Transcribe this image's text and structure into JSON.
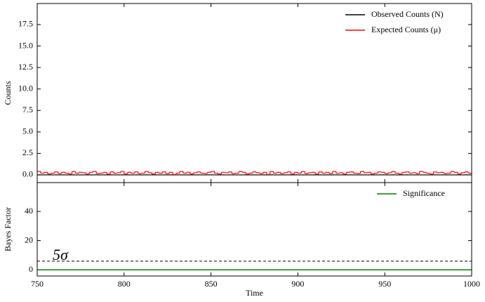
{
  "chart_data": [
    {
      "type": "step",
      "ylabel": "Counts",
      "xlim": [
        750,
        1000
      ],
      "ylim": [
        -0.9,
        19.95
      ],
      "yticks": [
        {
          "value": 0,
          "label": "0.0"
        },
        {
          "value": 2.5,
          "label": "2.5"
        },
        {
          "value": 5,
          "label": "5.0"
        },
        {
          "value": 7.5,
          "label": "7.5"
        },
        {
          "value": 10,
          "label": "10.0"
        },
        {
          "value": 12.5,
          "label": "12.5"
        },
        {
          "value": 15,
          "label": "15.0"
        },
        {
          "value": 17.5,
          "label": "17.5"
        }
      ],
      "legend": "upper right",
      "x": [
        750,
        752,
        754,
        756,
        758,
        760,
        762,
        764,
        766,
        768,
        770,
        772,
        774,
        776,
        778,
        780,
        782,
        784,
        786,
        788,
        790,
        792,
        794,
        796,
        798,
        800,
        802,
        804,
        806,
        808,
        810,
        812,
        814,
        816,
        818,
        820,
        822,
        824,
        826,
        828,
        830,
        832,
        834,
        836,
        838,
        840,
        842,
        844,
        846,
        848,
        850,
        852,
        854,
        856,
        858,
        860,
        862,
        864,
        866,
        868,
        870,
        872,
        874,
        876,
        878,
        880,
        882,
        884,
        886,
        888,
        890,
        892,
        894,
        896,
        898,
        900,
        902,
        904,
        906,
        908,
        910,
        912,
        914,
        916,
        918,
        920,
        922,
        924,
        926,
        928,
        930,
        932,
        934,
        936,
        938,
        940,
        942,
        944,
        946,
        948,
        950,
        952,
        954,
        956,
        958,
        960,
        962,
        964,
        966,
        968,
        970,
        972,
        974,
        976,
        978,
        980,
        982,
        984,
        986,
        988,
        990,
        992,
        994,
        996,
        998,
        1000
      ],
      "series": [
        {
          "name": "Observed Counts (N)",
          "color": "#000000",
          "values": [
            0,
            0,
            0,
            0,
            0,
            0,
            0,
            0,
            0,
            0,
            0,
            0,
            0,
            0,
            0,
            0,
            0,
            0,
            0,
            0,
            0,
            0,
            0,
            0,
            0,
            0,
            0,
            0,
            0,
            0,
            0,
            0,
            0,
            0,
            0,
            0,
            0,
            0,
            0,
            0,
            0,
            0,
            0,
            0,
            0,
            0,
            0,
            0,
            0,
            0,
            0,
            0,
            0,
            0,
            0,
            0,
            0,
            0,
            0,
            0,
            0,
            0,
            0,
            0,
            0,
            0,
            0,
            0,
            0,
            0,
            0,
            0,
            0,
            0,
            0,
            0,
            0,
            0,
            0,
            0,
            0,
            0,
            0,
            0,
            0,
            0,
            0,
            0,
            0,
            0,
            0,
            0,
            0,
            0,
            0,
            0,
            0,
            0,
            0,
            0,
            0,
            0,
            0,
            0,
            0,
            0,
            0,
            0,
            0,
            0,
            0,
            0,
            0,
            0,
            0,
            0,
            0,
            0,
            0,
            0,
            0,
            0,
            0,
            0,
            0,
            0
          ]
        },
        {
          "name": "Expected Counts (μ)",
          "color": "#ff0000",
          "values": [
            0.4,
            0.2,
            0.3,
            0.1,
            0.2,
            0.35,
            0.15,
            0.3,
            0.2,
            0.1,
            0.4,
            0.2,
            0.3,
            0.25,
            0.1,
            0.3,
            0.4,
            0.15,
            0.2,
            0.3,
            0.1,
            0.35,
            0.2,
            0.25,
            0.4,
            0.1,
            0.3,
            0.2,
            0.35,
            0.15,
            0.2,
            0.4,
            0.25,
            0.1,
            0.3,
            0.2,
            0.35,
            0.15,
            0.3,
            0.05,
            0.2,
            0.4,
            0.2,
            0.3,
            0.1,
            0.25,
            0.35,
            0.2,
            0.15,
            0.3,
            0.4,
            0.2,
            0.1,
            0.3,
            0.25,
            0.35,
            0.15,
            0.2,
            0.4,
            0.3,
            0.1,
            0.2,
            0.35,
            0.25,
            0.15,
            0.3,
            0.05,
            0.4,
            0.2,
            0.3,
            0.15,
            0.25,
            0.35,
            0.1,
            0.3,
            0.2,
            0.4,
            0.15,
            0.25,
            0.3,
            0.1,
            0.35,
            0.2,
            0.3,
            0.15,
            0.4,
            0.2,
            0.25,
            0.1,
            0.3,
            0.35,
            0.2,
            0.15,
            0.4,
            0.25,
            0.3,
            0.1,
            0.2,
            0.35,
            0.3,
            0.15,
            0.25,
            0.4,
            0.2,
            0.1,
            0.3,
            0.35,
            0.2,
            0.25,
            0.15,
            0.4,
            0.3,
            0.2,
            0.1,
            0.35,
            0.25,
            0.3,
            0.15,
            0.2,
            0.4,
            0.3,
            0.1,
            0.25,
            0.35,
            0.2,
            0.2
          ]
        }
      ]
    },
    {
      "type": "line",
      "xlabel": "Time",
      "ylabel": "Bayes Factor",
      "xlim": [
        750,
        1000
      ],
      "ylim": [
        -4.3,
        59.8
      ],
      "xticks": [
        750,
        800,
        850,
        900,
        950,
        1000
      ],
      "yticks": [
        0,
        20,
        40
      ],
      "legend": "upper right",
      "x": [
        750,
        1000
      ],
      "series": [
        {
          "name": "Significance",
          "color": "#008000",
          "values": [
            0,
            0
          ]
        }
      ],
      "hline": {
        "value": 5.9,
        "label": "5σ",
        "color": "#000000",
        "dashed": true
      }
    }
  ]
}
